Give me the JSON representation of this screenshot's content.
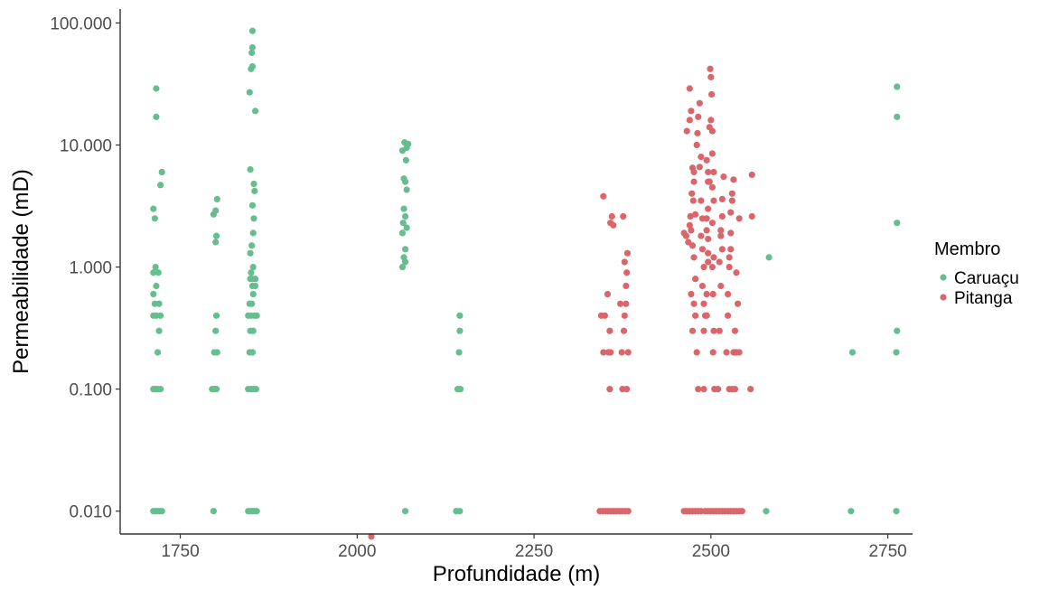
{
  "chart_data": {
    "type": "scatter",
    "title": "",
    "xlabel": "Profundidade (m)",
    "ylabel": "Permeabilidade (mD)",
    "xlim": [
      1665,
      2785
    ],
    "ylim": [
      0.0065,
      130
    ],
    "y_scale": "log10",
    "grid": false,
    "x_ticks": [
      1750,
      2000,
      2250,
      2500,
      2750
    ],
    "x_tick_labels": [
      "1750",
      "2000",
      "2250",
      "2500",
      "2750"
    ],
    "y_ticks": [
      0.01,
      0.1,
      1,
      10,
      100
    ],
    "y_tick_labels": [
      "0.010",
      "0.100",
      "1.000",
      "10.000",
      "100.000"
    ],
    "legend": {
      "title": "Membro",
      "position": "right",
      "entries": [
        {
          "label": "Caruaçu",
          "color": "#66bd8f"
        },
        {
          "label": "Pitanga",
          "color": "#d9666b"
        }
      ]
    },
    "series": [
      {
        "name": "Caruaçu",
        "color": "#66bd8f",
        "points": [
          [
            1712,
            0.01
          ],
          [
            1715,
            0.01
          ],
          [
            1718,
            0.01
          ],
          [
            1721,
            0.01
          ],
          [
            1724,
            0.01
          ],
          [
            1712,
            0.1
          ],
          [
            1715,
            0.1
          ],
          [
            1718,
            0.1
          ],
          [
            1722,
            0.1
          ],
          [
            1712,
            0.4
          ],
          [
            1722,
            0.4
          ],
          [
            1714,
            0.5
          ],
          [
            1720,
            0.5
          ],
          [
            1712,
            0.6
          ],
          [
            1716,
            0.7
          ],
          [
            1712,
            0.9
          ],
          [
            1715,
            1.0
          ],
          [
            1718,
            0.2
          ],
          [
            1720,
            0.3
          ],
          [
            1716,
            0.4
          ],
          [
            1712,
            3.0
          ],
          [
            1714,
            2.5
          ],
          [
            1719,
            0.9
          ],
          [
            1722,
            4.7
          ],
          [
            1724,
            6.0
          ],
          [
            1716,
            17
          ],
          [
            1716,
            29
          ],
          [
            1797,
            0.01
          ],
          [
            1795,
            0.1
          ],
          [
            1798,
            0.1
          ],
          [
            1801,
            0.1
          ],
          [
            1802,
            0.2
          ],
          [
            1798,
            0.2
          ],
          [
            1800,
            0.3
          ],
          [
            1801,
            0.4
          ],
          [
            1800,
            1.6
          ],
          [
            1801,
            1.8
          ],
          [
            1797,
            2.7
          ],
          [
            1800,
            2.9
          ],
          [
            1802,
            3.6
          ],
          [
            1846,
            0.01
          ],
          [
            1849,
            0.01
          ],
          [
            1852,
            0.01
          ],
          [
            1855,
            0.01
          ],
          [
            1858,
            0.01
          ],
          [
            1846,
            0.1
          ],
          [
            1850,
            0.1
          ],
          [
            1853,
            0.1
          ],
          [
            1857,
            0.1
          ],
          [
            1848,
            0.2
          ],
          [
            1852,
            0.2
          ],
          [
            1849,
            0.3
          ],
          [
            1853,
            0.3
          ],
          [
            1846,
            0.4
          ],
          [
            1850,
            0.4
          ],
          [
            1855,
            0.4
          ],
          [
            1858,
            0.4
          ],
          [
            1848,
            0.5
          ],
          [
            1851,
            0.5
          ],
          [
            1853,
            0.6
          ],
          [
            1852,
            0.7
          ],
          [
            1856,
            0.7
          ],
          [
            1849,
            0.8
          ],
          [
            1852,
            0.8
          ],
          [
            1856,
            0.8
          ],
          [
            1850,
            0.9
          ],
          [
            1853,
            1.0
          ],
          [
            1849,
            1.3
          ],
          [
            1851,
            1.5
          ],
          [
            1853,
            1.9
          ],
          [
            1854,
            2.5
          ],
          [
            1852,
            3.2
          ],
          [
            1855,
            4.2
          ],
          [
            1854,
            4.8
          ],
          [
            1849,
            6.3
          ],
          [
            1848,
            27
          ],
          [
            1850,
            42
          ],
          [
            1852,
            44
          ],
          [
            1851,
            57
          ],
          [
            1852,
            63
          ],
          [
            1852,
            86
          ],
          [
            1856,
            19
          ],
          [
            2068,
            0.01
          ],
          [
            2064,
            1.0
          ],
          [
            2068,
            1.1
          ],
          [
            2066,
            1.2
          ],
          [
            2068,
            1.4
          ],
          [
            2064,
            1.9
          ],
          [
            2070,
            2.1
          ],
          [
            2065,
            2.3
          ],
          [
            2068,
            2.6
          ],
          [
            2066,
            3.0
          ],
          [
            2070,
            4.3
          ],
          [
            2068,
            5.0
          ],
          [
            2066,
            5.3
          ],
          [
            2069,
            7.5
          ],
          [
            2064,
            9.0
          ],
          [
            2070,
            9.5
          ],
          [
            2067,
            10.5
          ],
          [
            2072,
            10.2
          ],
          [
            2140,
            0.01
          ],
          [
            2145,
            0.01
          ],
          [
            2142,
            0.1
          ],
          [
            2146,
            0.1
          ],
          [
            2144,
            0.2
          ],
          [
            2145,
            0.3
          ],
          [
            2145,
            0.4
          ],
          [
            2582,
            1.2
          ],
          [
            2578,
            0.01
          ],
          [
            2698,
            0.01
          ],
          [
            2700,
            0.2
          ],
          [
            2762,
            0.01
          ],
          [
            2762,
            0.2
          ],
          [
            2763,
            0.3
          ],
          [
            2763,
            2.3
          ],
          [
            2763,
            17
          ],
          [
            2763,
            30
          ]
        ]
      },
      {
        "name": "Pitanga",
        "color": "#d9666b",
        "points": [
          [
            2020,
            0.0062
          ],
          [
            2343,
            0.01
          ],
          [
            2347,
            0.01
          ],
          [
            2351,
            0.01
          ],
          [
            2355,
            0.01
          ],
          [
            2359,
            0.01
          ],
          [
            2363,
            0.01
          ],
          [
            2367,
            0.01
          ],
          [
            2371,
            0.01
          ],
          [
            2375,
            0.01
          ],
          [
            2379,
            0.01
          ],
          [
            2383,
            0.01
          ],
          [
            2345,
            0.4
          ],
          [
            2350,
            0.4
          ],
          [
            2348,
            0.2
          ],
          [
            2354,
            0.6
          ],
          [
            2348,
            3.8
          ],
          [
            2355,
            0.2
          ],
          [
            2357,
            0.1
          ],
          [
            2357,
            0.3
          ],
          [
            2358,
            2.3
          ],
          [
            2360,
            2.6
          ],
          [
            2362,
            2.2
          ],
          [
            2358,
            0.2
          ],
          [
            2372,
            0.5
          ],
          [
            2374,
            0.2
          ],
          [
            2375,
            0.1
          ],
          [
            2377,
            0.3
          ],
          [
            2378,
            0.4
          ],
          [
            2380,
            0.5
          ],
          [
            2378,
            1.1
          ],
          [
            2381,
            0.9
          ],
          [
            2376,
            2.6
          ],
          [
            2380,
            0.7
          ],
          [
            2382,
            1.3
          ],
          [
            2381,
            0.1
          ],
          [
            2383,
            0.2
          ],
          [
            2462,
            0.01
          ],
          [
            2466,
            0.01
          ],
          [
            2470,
            0.01
          ],
          [
            2474,
            0.01
          ],
          [
            2478,
            0.01
          ],
          [
            2482,
            0.01
          ],
          [
            2486,
            0.01
          ],
          [
            2492,
            0.01
          ],
          [
            2496,
            0.01
          ],
          [
            2500,
            0.01
          ],
          [
            2504,
            0.01
          ],
          [
            2508,
            0.01
          ],
          [
            2512,
            0.01
          ],
          [
            2516,
            0.01
          ],
          [
            2520,
            0.01
          ],
          [
            2524,
            0.01
          ],
          [
            2528,
            0.01
          ],
          [
            2532,
            0.01
          ],
          [
            2536,
            0.01
          ],
          [
            2540,
            0.01
          ],
          [
            2544,
            0.01
          ],
          [
            2462,
            1.9
          ],
          [
            2465,
            1.8
          ],
          [
            2468,
            1.6
          ],
          [
            2470,
            2.2
          ],
          [
            2471,
            2.6
          ],
          [
            2472,
            2.0
          ],
          [
            2466,
            13
          ],
          [
            2470,
            16
          ],
          [
            2470,
            29
          ],
          [
            2472,
            19
          ],
          [
            2474,
            6.5
          ],
          [
            2476,
            6.0
          ],
          [
            2476,
            5.0
          ],
          [
            2473,
            4.0
          ],
          [
            2475,
            3.5
          ],
          [
            2478,
            2.7
          ],
          [
            2474,
            1.5
          ],
          [
            2476,
            1.2
          ],
          [
            2478,
            0.8
          ],
          [
            2472,
            0.6
          ],
          [
            2476,
            0.5
          ],
          [
            2478,
            0.4
          ],
          [
            2474,
            0.3
          ],
          [
            2480,
            0.2
          ],
          [
            2482,
            0.1
          ],
          [
            2480,
            10
          ],
          [
            2481,
            12.5
          ],
          [
            2482,
            17
          ],
          [
            2484,
            22
          ],
          [
            2486,
            8.0
          ],
          [
            2484,
            6.6
          ],
          [
            2486,
            3.5
          ],
          [
            2488,
            2.5
          ],
          [
            2486,
            1.8
          ],
          [
            2488,
            1.4
          ],
          [
            2490,
            1.0
          ],
          [
            2488,
            0.7
          ],
          [
            2490,
            0.5
          ],
          [
            2492,
            0.4
          ],
          [
            2490,
            0.3
          ],
          [
            2490,
            0.1
          ],
          [
            2494,
            0.4
          ],
          [
            2494,
            0.6
          ],
          [
            2496,
            1.1
          ],
          [
            2496,
            1.3
          ],
          [
            2496,
            1.7
          ],
          [
            2494,
            2.0
          ],
          [
            2494,
            2.5
          ],
          [
            2496,
            3.0
          ],
          [
            2496,
            5.0
          ],
          [
            2496,
            6.0
          ],
          [
            2494,
            7.5
          ],
          [
            2498,
            5.0
          ],
          [
            2498,
            14
          ],
          [
            2500,
            16
          ],
          [
            2501,
            26
          ],
          [
            2499,
            42
          ],
          [
            2500,
            36
          ],
          [
            2502,
            13
          ],
          [
            2502,
            8.5
          ],
          [
            2504,
            6.0
          ],
          [
            2502,
            4.5
          ],
          [
            2504,
            3.5
          ],
          [
            2502,
            2.3
          ],
          [
            2504,
            1.2
          ],
          [
            2502,
            1.0
          ],
          [
            2503,
            0.6
          ],
          [
            2504,
            0.3
          ],
          [
            2503,
            0.2
          ],
          [
            2505,
            0.1
          ],
          [
            2510,
            0.1
          ],
          [
            2512,
            0.3
          ],
          [
            2514,
            0.7
          ],
          [
            2512,
            1.1
          ],
          [
            2516,
            1.4
          ],
          [
            2514,
            1.8
          ],
          [
            2516,
            2.6
          ],
          [
            2516,
            3.6
          ],
          [
            2518,
            5.5
          ],
          [
            2514,
            2.0
          ],
          [
            2522,
            0.2
          ],
          [
            2524,
            0.4
          ],
          [
            2524,
            0.6
          ],
          [
            2526,
            1.0
          ],
          [
            2526,
            1.2
          ],
          [
            2528,
            1.4
          ],
          [
            2528,
            1.9
          ],
          [
            2528,
            2.8
          ],
          [
            2530,
            3.5
          ],
          [
            2530,
            4.0
          ],
          [
            2532,
            5.2
          ],
          [
            2526,
            0.1
          ],
          [
            2530,
            0.1
          ],
          [
            2532,
            0.2
          ],
          [
            2534,
            0.3
          ],
          [
            2534,
            0.2
          ],
          [
            2534,
            0.1
          ],
          [
            2536,
            0.2
          ],
          [
            2536,
            0.9
          ],
          [
            2538,
            0.5
          ],
          [
            2540,
            0.2
          ],
          [
            2540,
            2.5
          ],
          [
            2556,
            0.1
          ],
          [
            2558,
            2.6
          ],
          [
            2558,
            5.7
          ]
        ]
      }
    ]
  }
}
